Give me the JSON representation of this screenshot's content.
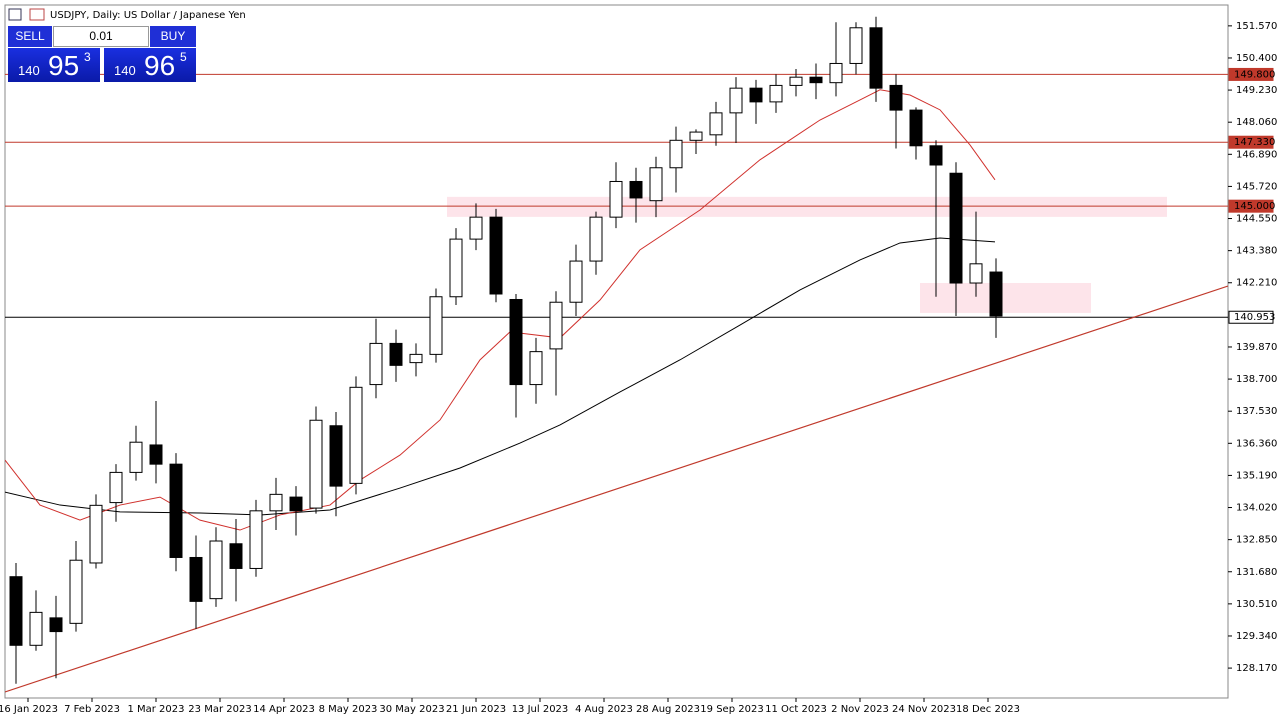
{
  "header": "USDJPY, Daily:  US Dollar / Japanese Yen",
  "trade_panel": {
    "sell": "SELL",
    "buy": "BUY",
    "volume": "0.01",
    "bid": {
      "big": "140",
      "main": "95",
      "small": "3"
    },
    "ask": {
      "big": "140",
      "main": "96",
      "small": "5"
    }
  },
  "chart_data": {
    "type": "candlestick",
    "xlim": [
      -5.75,
      300
    ],
    "ylim": [
      127.08,
      152.33
    ],
    "yticks": [
      {
        "value": 151.57,
        "label": "151.570"
      },
      {
        "value": 150.4,
        "label": "150.400"
      },
      {
        "value": 149.23,
        "label": "149.230"
      },
      {
        "value": 148.06,
        "label": "148.060"
      },
      {
        "value": 146.89,
        "label": "146.890"
      },
      {
        "value": 145.72,
        "label": "145.720"
      },
      {
        "value": 144.55,
        "label": "144.550"
      },
      {
        "value": 143.38,
        "label": "143.380"
      },
      {
        "value": 142.21,
        "label": "142.210"
      },
      {
        "value": 139.87,
        "label": "139.870"
      },
      {
        "value": 138.7,
        "label": "138.700"
      },
      {
        "value": 137.53,
        "label": "137.530"
      },
      {
        "value": 136.36,
        "label": "136.360"
      },
      {
        "value": 135.19,
        "label": "135.190"
      },
      {
        "value": 134.02,
        "label": "134.020"
      },
      {
        "value": 132.85,
        "label": "132.850"
      },
      {
        "value": 131.68,
        "label": "131.680"
      },
      {
        "value": 130.51,
        "label": "130.510"
      },
      {
        "value": 129.34,
        "label": "129.340"
      },
      {
        "value": 128.17,
        "label": "128.170"
      }
    ],
    "xticks": [
      {
        "value": 0,
        "label": "16 Jan 2023"
      },
      {
        "value": 16,
        "label": "7 Feb 2023"
      },
      {
        "value": 32,
        "label": "1 Mar 2023"
      },
      {
        "value": 48,
        "label": "23 Mar 2023"
      },
      {
        "value": 64,
        "label": "14 Apr 2023"
      },
      {
        "value": 80,
        "label": "8 May 2023"
      },
      {
        "value": 96,
        "label": "30 May 2023"
      },
      {
        "value": 112,
        "label": "21 Jun 2023"
      },
      {
        "value": 128,
        "label": "13 Jul 2023"
      },
      {
        "value": 144,
        "label": "4 Aug 2023"
      },
      {
        "value": 160,
        "label": "28 Aug 2023"
      },
      {
        "value": 176,
        "label": "19 Sep 2023"
      },
      {
        "value": 192,
        "label": "11 Oct 2023"
      },
      {
        "value": 208,
        "label": "2 Nov 2023"
      },
      {
        "value": 224,
        "label": "24 Nov 2023"
      },
      {
        "value": 240,
        "label": "18 Dec 2023"
      }
    ],
    "candles": {
      "x": [
        -3,
        2,
        7,
        12,
        17,
        22,
        27,
        32,
        37,
        42,
        47,
        52,
        57,
        62,
        67,
        72,
        77,
        82,
        87,
        92,
        97,
        102,
        107,
        112,
        117,
        122,
        127,
        132,
        137,
        142,
        147,
        152,
        157,
        162,
        167,
        172,
        177,
        182,
        187,
        192,
        197,
        202,
        207,
        212,
        217,
        222,
        227,
        232,
        237,
        242
      ],
      "open": [
        131.5,
        129,
        130,
        129.8,
        132,
        134.2,
        135.3,
        136.3,
        135.6,
        132.2,
        130.7,
        132.7,
        131.8,
        133.9,
        134.4,
        134,
        137,
        134.9,
        138.5,
        140,
        139.3,
        139.6,
        141.7,
        143.8,
        144.6,
        141.6,
        138.5,
        139.8,
        141.5,
        143,
        144.6,
        145.9,
        145.2,
        146.4,
        147.4,
        147.6,
        148.4,
        149.3,
        148.8,
        149.4,
        149.7,
        149.5,
        150.2,
        151.5,
        149.4,
        148.5,
        147.2,
        146.2,
        142.2,
        142.6
      ],
      "high": [
        132,
        131,
        130.8,
        132.8,
        134.5,
        135.6,
        137,
        137.9,
        136,
        133,
        133.3,
        133.6,
        134.3,
        135.1,
        134.8,
        137.7,
        137.5,
        138.8,
        140.9,
        140.5,
        140,
        142,
        144.2,
        145.1,
        144.9,
        141.8,
        140.2,
        141.9,
        143.6,
        144.8,
        146.6,
        146.4,
        146.8,
        147.9,
        147.8,
        148.8,
        149.7,
        149.6,
        149.8,
        150,
        150.2,
        151.7,
        151.7,
        151.9,
        149.8,
        148.6,
        147.4,
        146.6,
        144.8,
        143.1
      ],
      "low": [
        127.6,
        128.8,
        127.8,
        129.5,
        131.8,
        133.5,
        135,
        134.9,
        131.7,
        129.6,
        130.4,
        130.6,
        131.5,
        133.2,
        133,
        133.8,
        133.7,
        134.5,
        138,
        138.6,
        138.8,
        139.3,
        141.4,
        143.4,
        141.5,
        137.3,
        137.8,
        138.1,
        141,
        142.5,
        144.2,
        144.4,
        144.6,
        145.5,
        146.9,
        147.2,
        147.3,
        148,
        148.4,
        149,
        148.9,
        149,
        149.8,
        148.8,
        147.1,
        146.7,
        141.7,
        141,
        141.7,
        140.2
      ],
      "close": [
        129,
        130.2,
        129.5,
        132.1,
        134.1,
        135.3,
        136.4,
        135.6,
        132.2,
        130.6,
        132.8,
        131.8,
        133.9,
        134.5,
        133.9,
        137.2,
        134.8,
        138.4,
        140,
        139.2,
        139.6,
        141.7,
        143.8,
        144.6,
        141.8,
        138.5,
        139.7,
        141.5,
        143,
        144.6,
        145.9,
        145.3,
        146.4,
        147.4,
        147.7,
        148.4,
        149.3,
        148.8,
        149.4,
        149.7,
        149.5,
        150.2,
        151.5,
        149.3,
        148.5,
        147.2,
        146.5,
        142.2,
        142.9,
        141
      ]
    },
    "series": [
      {
        "color": "#000000",
        "x": [
          -5.75,
          8,
          23,
          43,
          58,
          75.5,
          93,
          108,
          123,
          133,
          148,
          163,
          178,
          193,
          208,
          218,
          228,
          241.75
        ],
        "values": [
          134.58,
          134.11,
          133.86,
          133.82,
          133.75,
          133.93,
          134.73,
          135.46,
          136.37,
          137.03,
          138.23,
          139.4,
          140.67,
          141.95,
          143.04,
          143.66,
          143.84,
          143.7
        ]
      },
      {
        "color": "#d0312d",
        "x": [
          -5.75,
          3,
          13,
          23,
          33,
          43,
          53,
          63,
          75.5,
          83,
          93,
          103,
          113,
          120.5,
          133,
          143,
          153,
          168,
          183,
          198,
          208,
          213,
          220.5,
          228,
          235.5,
          241.75
        ],
        "values": [
          135.75,
          134.11,
          133.56,
          134.11,
          134.4,
          133.56,
          133.2,
          133.75,
          134.11,
          135.02,
          135.93,
          137.21,
          139.4,
          140.42,
          140.2,
          141.58,
          143.41,
          144.86,
          146.69,
          148.14,
          148.87,
          149.24,
          149.05,
          148.51,
          147.23,
          145.96
        ]
      }
    ],
    "trendline": {
      "color": "#c0392b",
      "x": [
        -5.75,
        300
      ],
      "values": [
        127.3,
        142.09
      ]
    },
    "zones": [
      {
        "color": "#fde4ea",
        "x": [
          104.75,
          284.75
        ],
        "y": [
          144.61,
          145.34
        ]
      },
      {
        "color": "#fde4ea",
        "x": [
          223,
          265.75
        ],
        "y": [
          141.11,
          142.2
        ]
      }
    ],
    "levels": [
      {
        "value": 149.8,
        "label": "149.800",
        "color": "#c0392b"
      },
      {
        "value": 147.33,
        "label": "147.330",
        "color": "#c0392b"
      },
      {
        "value": 145,
        "label": "145.000",
        "color": "#c0392b"
      }
    ],
    "current_price": {
      "value": 140.953,
      "label": "140.953",
      "color": "#000000"
    }
  }
}
